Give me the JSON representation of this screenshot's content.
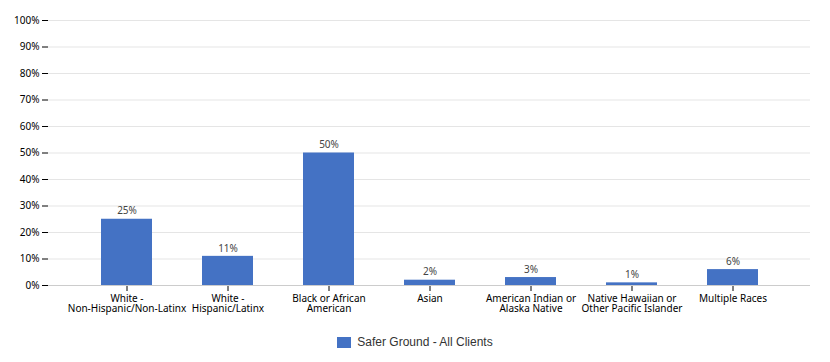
{
  "chart_data": {
    "type": "bar",
    "categories": [
      "White -\nNon-Hispanic/Non-Latinx",
      "White -\nHispanic/Latinx",
      "Black or African\nAmerican",
      "Asian",
      "American Indian or\nAlaska Native",
      "Native Hawaiian or\nOther Pacific Islander",
      "Multiple Races"
    ],
    "series": [
      {
        "name": "Safer Ground - All Clients",
        "color": "#4472C4",
        "values": [
          25,
          11,
          50,
          2,
          3,
          1,
          6
        ],
        "value_labels": [
          "25%",
          "11%",
          "50%",
          "2%",
          "3%",
          "1%",
          "6%"
        ]
      }
    ],
    "ylim": [
      0,
      100
    ],
    "yticks": [
      {
        "value": 0,
        "label": "0%"
      },
      {
        "value": 10,
        "label": "10%"
      },
      {
        "value": 20,
        "label": "20%"
      },
      {
        "value": 30,
        "label": "30%"
      },
      {
        "value": 40,
        "label": "40%"
      },
      {
        "value": 50,
        "label": "50%"
      },
      {
        "value": 60,
        "label": "60%"
      },
      {
        "value": 70,
        "label": "70%"
      },
      {
        "value": 80,
        "label": "80%"
      },
      {
        "value": 90,
        "label": "90%"
      },
      {
        "value": 100,
        "label": "100%"
      }
    ],
    "grid": true,
    "data_labels": true,
    "legend": "bottom"
  }
}
